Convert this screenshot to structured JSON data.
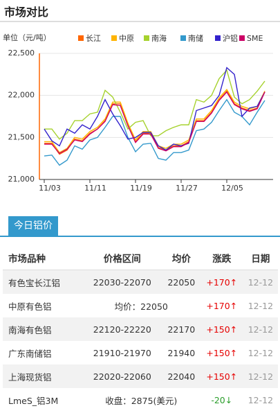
{
  "header": {
    "title": "市场对比"
  },
  "chart_data": {
    "type": "line",
    "unit_label": "单位（元/吨）",
    "categories": [
      "11/03",
      null,
      null,
      null,
      null,
      null,
      "11/11",
      null,
      null,
      null,
      null,
      null,
      "11/19",
      null,
      null,
      null,
      null,
      null,
      "11/27",
      null,
      null,
      null,
      null,
      null,
      "12/05",
      null,
      null,
      null,
      null,
      null
    ],
    "series": [
      {
        "name": "长江",
        "color": "#ff6600",
        "values": [
          21430,
          21430,
          21300,
          21350,
          21480,
          21460,
          21550,
          21600,
          21700,
          21900,
          21900,
          21650,
          21450,
          21550,
          21550,
          21380,
          21350,
          21400,
          21400,
          21450,
          21700,
          21700,
          21800,
          21950,
          22050,
          21900,
          21850,
          21820,
          21850,
          22050
        ]
      },
      {
        "name": "中原",
        "color": "#ffb400",
        "values": [
          21450,
          21450,
          21320,
          21370,
          21500,
          21480,
          21570,
          21620,
          21720,
          21920,
          21920,
          21670,
          21470,
          21570,
          21570,
          21400,
          21370,
          21420,
          21420,
          21470,
          21720,
          21720,
          21820,
          21970,
          22070,
          21920,
          21870,
          21840,
          21870,
          22050
        ]
      },
      {
        "name": "南海",
        "color": "#a6d22e",
        "values": [
          21600,
          21600,
          21480,
          21550,
          21700,
          21700,
          21780,
          21800,
          22060,
          21980,
          21800,
          21600,
          21680,
          21700,
          21520,
          21520,
          21580,
          21620,
          21650,
          21650,
          21950,
          21920,
          22000,
          22200,
          22300,
          21980,
          21900,
          21950,
          22050,
          22170
        ]
      },
      {
        "name": "南储",
        "color": "#3399cc",
        "values": [
          21280,
          21290,
          21170,
          21230,
          21400,
          21360,
          21470,
          21500,
          21620,
          21750,
          21750,
          21500,
          21330,
          21420,
          21430,
          21250,
          21230,
          21320,
          21320,
          21350,
          21580,
          21600,
          21680,
          21820,
          21950,
          21800,
          21750,
          21650,
          21800,
          21940
        ]
      },
      {
        "name": "沪铝",
        "color": "#3322cc",
        "values": [
          21600,
          21460,
          21400,
          21600,
          21550,
          21650,
          21600,
          21750,
          21950,
          21780,
          21640,
          21480,
          21500,
          21560,
          21560,
          21400,
          21350,
          21420,
          21400,
          21430,
          21820,
          21850,
          21880,
          22000,
          22330,
          22250,
          21750,
          21850,
          21870,
          22040
        ]
      },
      {
        "name": "SME",
        "color": "#cc0066",
        "values": [
          21420,
          21420,
          21310,
          21360,
          21470,
          21450,
          21540,
          21600,
          21690,
          21890,
          21880,
          21640,
          21440,
          21540,
          21540,
          21370,
          21340,
          21390,
          21390,
          21440,
          21690,
          21690,
          21790,
          21940,
          22040,
          21890,
          21840,
          21810,
          21840,
          22040
        ]
      }
    ],
    "ylim": [
      21000,
      22500
    ],
    "yticks": [
      {
        "value": 21000,
        "label": "21,000"
      },
      {
        "value": 21500,
        "label": "21,500"
      },
      {
        "value": 22000,
        "label": "22,000"
      },
      {
        "value": 22500,
        "label": "22,500"
      }
    ],
    "grid": true
  },
  "table": {
    "title": "今日铝价",
    "columns": [
      "市场品种",
      "价格区间",
      "均价",
      "涨跌",
      "日期"
    ],
    "rows": [
      [
        "有色宝长江铝",
        "22030-22070",
        "22050",
        "+170",
        "12-12"
      ],
      [
        "中原有色铝",
        "均价：22050",
        "+170",
        "12-12"
      ],
      [
        "南海有色铝",
        "22120-22220",
        "22170",
        "+150",
        "12-12"
      ],
      [
        "广东南储铝",
        "21910-21970",
        "21940",
        "+150",
        "12-12"
      ],
      [
        "上海现货铝",
        "22020-22060",
        "22040",
        "+150",
        "12-12"
      ],
      [
        "LmeS_铝3M",
        "收盘：2875(美元)",
        "-20",
        "12-12"
      ]
    ]
  }
}
